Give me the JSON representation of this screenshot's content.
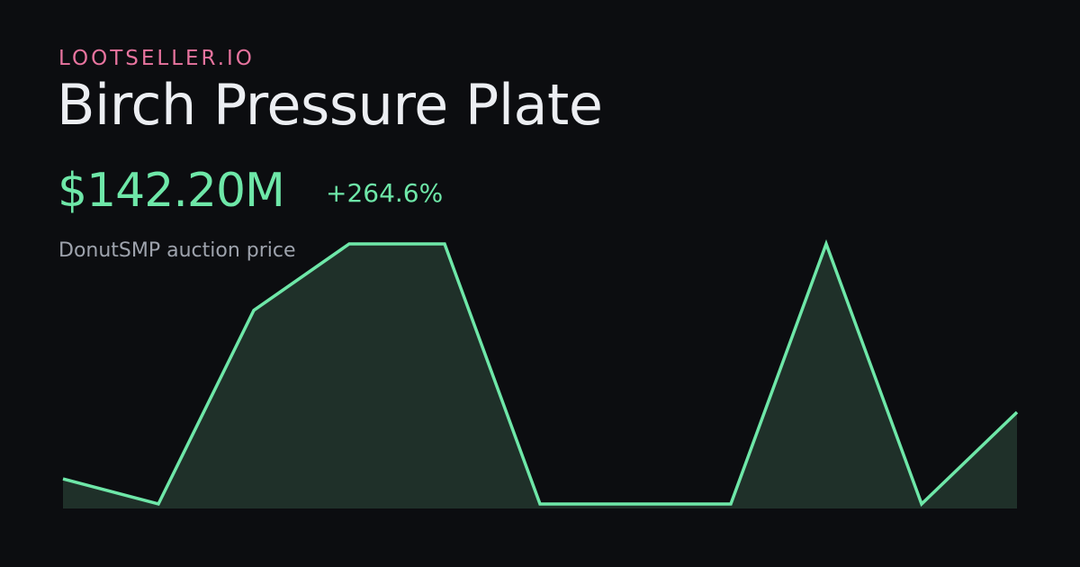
{
  "chart_data": {
    "type": "area",
    "brand": "LOOTSELLER.IO",
    "title": "Birch Pressure Plate",
    "price": "$142.20M",
    "change": "+264.6%",
    "subtitle": "DonutSMP auction price",
    "color": "#6ee7a8",
    "fill": "#1f3029",
    "values": [
      39,
      0,
      300,
      403,
      403,
      0,
      0,
      0,
      403,
      0,
      142.2
    ]
  }
}
